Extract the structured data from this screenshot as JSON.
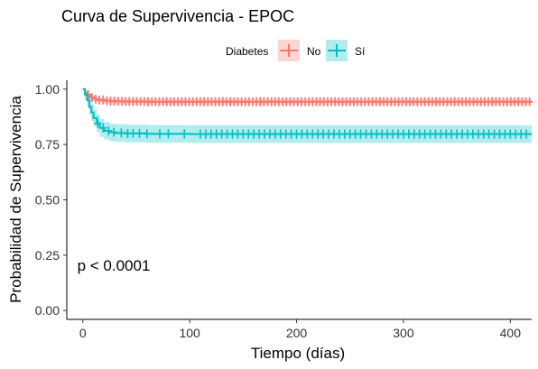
{
  "chart_data": {
    "type": "line",
    "title": "Curva de Supervivencia - EPOC",
    "xlabel": "Tiempo (días)",
    "ylabel": "Probabilidad de Supervivencia",
    "xlim": [
      -15,
      420
    ],
    "ylim": [
      -0.04,
      1.04
    ],
    "x_ticks": [
      0,
      100,
      200,
      300,
      400
    ],
    "y_ticks": [
      0.0,
      0.25,
      0.5,
      0.75,
      1.0
    ],
    "y_tick_labels": [
      "0.00",
      "0.25",
      "0.50",
      "0.75",
      "1.00"
    ],
    "legend": {
      "title": "Diabetes",
      "position": "top"
    },
    "annotation": "p < 0.0001",
    "annotation_pos": {
      "x": 10,
      "y": 0.18
    },
    "grid": false,
    "series": [
      {
        "name": "No",
        "color": "#F8766D",
        "x": [
          0,
          2,
          4,
          6,
          8,
          10,
          12,
          15,
          20,
          25,
          30,
          40,
          60,
          100,
          200,
          300,
          420
        ],
        "y": [
          1.0,
          0.985,
          0.975,
          0.968,
          0.962,
          0.958,
          0.955,
          0.951,
          0.948,
          0.946,
          0.945,
          0.944,
          0.943,
          0.943,
          0.943,
          0.943,
          0.943
        ],
        "ci_lower": [
          1.0,
          0.975,
          0.963,
          0.955,
          0.948,
          0.944,
          0.941,
          0.937,
          0.933,
          0.931,
          0.93,
          0.929,
          0.928,
          0.928,
          0.928,
          0.928,
          0.928
        ],
        "ci_upper": [
          1.0,
          0.993,
          0.986,
          0.98,
          0.975,
          0.971,
          0.968,
          0.964,
          0.961,
          0.96,
          0.959,
          0.958,
          0.957,
          0.957,
          0.957,
          0.957,
          0.957
        ],
        "censor_start": 5,
        "censor_end": 420,
        "censor_step": 3.5
      },
      {
        "name": "Sí",
        "color": "#00BFC4",
        "x": [
          0,
          2,
          4,
          6,
          8,
          10,
          13,
          16,
          20,
          25,
          30,
          40,
          60,
          100,
          200,
          300,
          420
        ],
        "y": [
          1.0,
          0.975,
          0.95,
          0.92,
          0.895,
          0.87,
          0.845,
          0.825,
          0.812,
          0.805,
          0.802,
          0.8,
          0.798,
          0.797,
          0.797,
          0.797,
          0.797
        ],
        "ci_lower": [
          1.0,
          0.955,
          0.92,
          0.885,
          0.855,
          0.83,
          0.805,
          0.785,
          0.772,
          0.765,
          0.762,
          0.76,
          0.758,
          0.757,
          0.757,
          0.757,
          0.757
        ],
        "ci_upper": [
          1.0,
          0.99,
          0.975,
          0.955,
          0.935,
          0.91,
          0.885,
          0.865,
          0.852,
          0.845,
          0.842,
          0.84,
          0.838,
          0.837,
          0.837,
          0.837,
          0.837
        ],
        "censor_x": [
          14,
          19,
          24,
          29,
          36,
          42,
          47,
          53,
          60,
          72,
          80,
          95,
          110,
          115,
          120,
          125,
          130,
          135,
          140,
          145,
          150,
          155,
          160,
          165,
          170,
          175,
          180,
          185,
          190,
          195,
          200,
          205,
          210,
          215,
          220,
          225,
          230,
          235,
          240,
          245,
          250,
          255,
          260,
          265,
          270,
          275,
          280,
          285,
          290,
          295,
          300,
          305,
          310,
          315,
          320,
          325,
          330,
          335,
          340,
          345,
          350,
          355,
          360,
          365,
          370,
          375,
          380,
          385,
          390,
          395,
          400,
          405,
          410,
          415
        ]
      }
    ]
  }
}
